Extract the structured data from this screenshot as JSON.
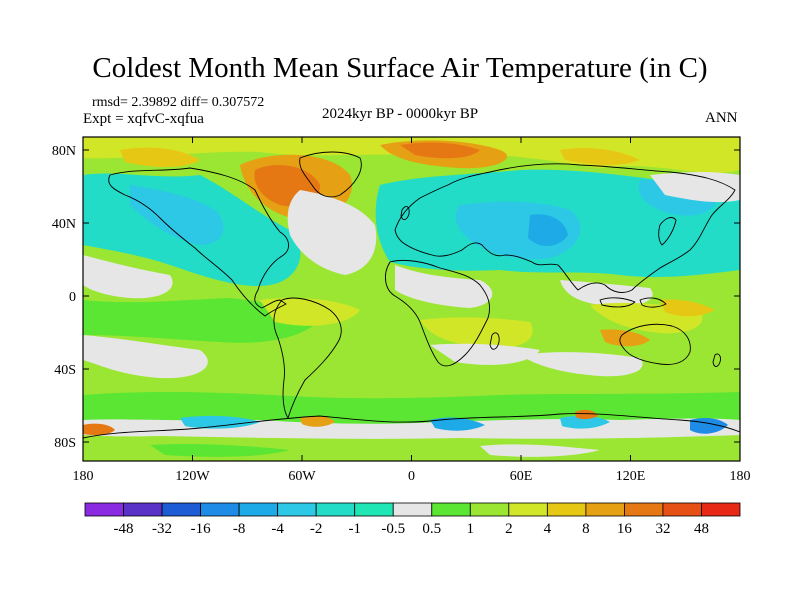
{
  "title": "Coldest Month Mean Surface Air Temperature (in C)",
  "stats": "rmsd= 2.39892 diff= 0.307572",
  "experiment": "Expt = xqfvC-xqfua",
  "period": "2024kyr BP - 0000kyr BP",
  "season": "ANN",
  "lat_ticks": [
    "80N",
    "40N",
    "0",
    "40S",
    "80S"
  ],
  "lon_ticks": [
    "180",
    "120W",
    "60W",
    "0",
    "60E",
    "120E",
    "180"
  ],
  "colorbar": {
    "labels": [
      "-48",
      "-32",
      "-16",
      "-8",
      "-4",
      "-2",
      "-1",
      "-0.5",
      "0.5",
      "1",
      "2",
      "4",
      "8",
      "16",
      "32",
      "48"
    ],
    "colors": [
      "#8a2be2",
      "#5a32c8",
      "#1e5cd6",
      "#1e8ce6",
      "#1eaae6",
      "#2cc8e6",
      "#22dcc8",
      "#1ee6b4",
      "#e6e6e6",
      "#5ae632",
      "#9be632",
      "#d2e628",
      "#e6c814",
      "#e6a014",
      "#e67814",
      "#e65014",
      "#e62814"
    ]
  }
}
